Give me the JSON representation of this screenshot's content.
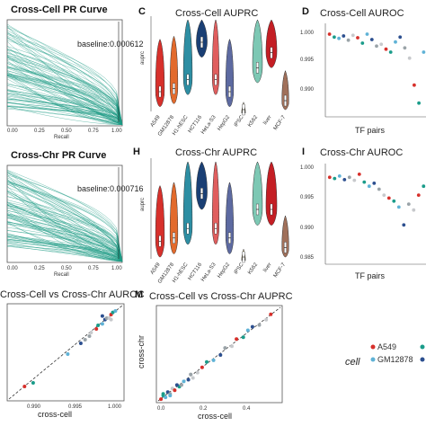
{
  "palette": {
    "teal": "#1d9a84",
    "cells": [
      "#d7302b",
      "#e26a2c",
      "#2d8ea3",
      "#1a3f74",
      "#e05e5e",
      "#5d6aa1",
      "#d8b84a",
      "#7dc8b4",
      "#c41e24",
      "#a0705a"
    ],
    "points": [
      "#d7302b",
      "#1a9c8a",
      "#5fb2d6",
      "#2c4f8f",
      "#9aa3a8",
      "#c7c9cc"
    ]
  },
  "panels": {
    "pr_cell": {
      "title": "Cross-Cell PR Curve",
      "baseline": "baseline:0.000612",
      "xlabel": "Recall",
      "xticks": [
        "0.00",
        "0.25",
        "0.50",
        "0.75",
        "1.00"
      ]
    },
    "pr_chr": {
      "title": "Cross-Chr PR Curve",
      "baseline": "baseline:0.000716",
      "xlabel": "Recall",
      "xticks": [
        "0.00",
        "0.25",
        "0.50",
        "0.75",
        "1.00"
      ]
    },
    "c": {
      "letter": "C",
      "title": "Cross-Cell AUPRC",
      "ylabel": "auprc"
    },
    "h": {
      "letter": "H",
      "title": "Cross-Chr AUPRC",
      "ylabel": "auprc"
    },
    "d": {
      "letter": "D",
      "title": "Cross-Cell AUROC",
      "xlabel": "TF pairs",
      "yticks": [
        "1.000",
        "0.995",
        "0.990"
      ]
    },
    "i": {
      "letter": "I",
      "title": "Cross-Chr AUROC",
      "xlabel": "TF pairs",
      "yticks": [
        "1.000",
        "0.995",
        "0.990",
        "0.985"
      ]
    },
    "l": {
      "title": "Cross-Cell vs Cross-Chr AUROC",
      "xlabel": "cross-cell",
      "xticks": [
        "0.990",
        "0.995",
        "1.000"
      ]
    },
    "m": {
      "letter": "M",
      "title": "Cross-Cell vs Cross-Chr AUPRC",
      "xlabel": "cross-cell",
      "ylabel": "cross-chr",
      "xticks": [
        "0.0",
        "0.2",
        "0.4"
      ]
    }
  },
  "legend": {
    "title": "cell",
    "items": [
      "A549",
      "GM12878"
    ]
  },
  "chart_data": [
    {
      "type": "violin",
      "title": "Cross-Cell AUPRC",
      "ylabel": "auprc",
      "categories": [
        "A549",
        "GM12878",
        "H1-hESC",
        "HCT116",
        "HeLa-S3",
        "HepG2",
        "iPSC",
        "K562",
        "liver",
        "MCF-7"
      ],
      "medians": [
        0.12,
        0.14,
        0.2,
        0.45,
        0.2,
        0.12,
        0.0,
        0.28,
        0.38,
        0.06
      ]
    },
    {
      "type": "violin",
      "title": "Cross-Chr AUPRC",
      "ylabel": "auprc",
      "categories": [
        "A549",
        "GM12878",
        "H1-hESC",
        "HCT116",
        "HeLa-S3",
        "HepG2",
        "iPSC",
        "K562",
        "liver",
        "MCF-7"
      ],
      "medians": [
        0.1,
        0.12,
        0.18,
        0.4,
        0.18,
        0.12,
        0.0,
        0.3,
        0.3,
        0.06
      ]
    },
    {
      "type": "scatter",
      "title": "Cross-Cell AUROC",
      "xlabel": "TF pairs",
      "ylim": [
        0.985,
        1.0
      ],
      "y": [
        0.9985,
        0.998,
        0.9978,
        0.9982,
        0.9975,
        0.9983,
        0.9979,
        0.997,
        0.9985,
        0.9976,
        0.9965,
        0.9968,
        0.996,
        0.9955,
        0.9972,
        0.998,
        0.9962,
        0.9945,
        0.99,
        0.987,
        0.9955
      ]
    },
    {
      "type": "scatter",
      "title": "Cross-Chr AUROC",
      "xlabel": "TF pairs",
      "ylim": [
        0.984,
        1.0
      ],
      "y": [
        0.998,
        0.9978,
        0.9982,
        0.9976,
        0.998,
        0.9975,
        0.9985,
        0.9972,
        0.9965,
        0.997,
        0.996,
        0.995,
        0.9945,
        0.994,
        0.993,
        0.99,
        0.9935,
        0.9925,
        0.995,
        0.9965
      ]
    },
    {
      "type": "scatter",
      "title": "Cross-Cell vs Cross-Chr AUROC",
      "xlabel": "cross-cell",
      "xlim": [
        0.9865,
        1.0
      ],
      "x": [
        0.9885,
        0.9895,
        0.9935,
        0.995,
        0.9955,
        0.9962,
        0.9968,
        0.997,
        0.9975,
        0.9978,
        0.998,
        0.9983,
        0.9985,
        0.9987,
        0.999,
        0.9975,
        0.996,
        0.9985
      ],
      "y": [
        0.9885,
        0.989,
        0.993,
        0.9945,
        0.995,
        0.996,
        0.9965,
        0.997,
        0.9972,
        0.9978,
        0.998,
        0.998,
        0.9985,
        0.9988,
        0.999,
        0.9983,
        0.9955,
        0.9978
      ]
    },
    {
      "type": "scatter",
      "title": "Cross-Cell vs Cross-Chr AUPRC",
      "xlabel": "cross-cell",
      "ylabel": "cross-chr",
      "xlim": [
        0,
        0.55
      ],
      "x": [
        0.02,
        0.03,
        0.04,
        0.05,
        0.06,
        0.07,
        0.08,
        0.1,
        0.12,
        0.14,
        0.15,
        0.18,
        0.2,
        0.22,
        0.25,
        0.28,
        0.3,
        0.33,
        0.35,
        0.38,
        0.4,
        0.42,
        0.45,
        0.48,
        0.5,
        0.03,
        0.06,
        0.09,
        0.11,
        0.16
      ],
      "y": [
        0.02,
        0.04,
        0.03,
        0.06,
        0.05,
        0.08,
        0.07,
        0.09,
        0.12,
        0.13,
        0.16,
        0.17,
        0.2,
        0.23,
        0.24,
        0.27,
        0.31,
        0.32,
        0.36,
        0.37,
        0.41,
        0.43,
        0.44,
        0.47,
        0.5,
        0.05,
        0.04,
        0.1,
        0.1,
        0.14
      ]
    }
  ]
}
